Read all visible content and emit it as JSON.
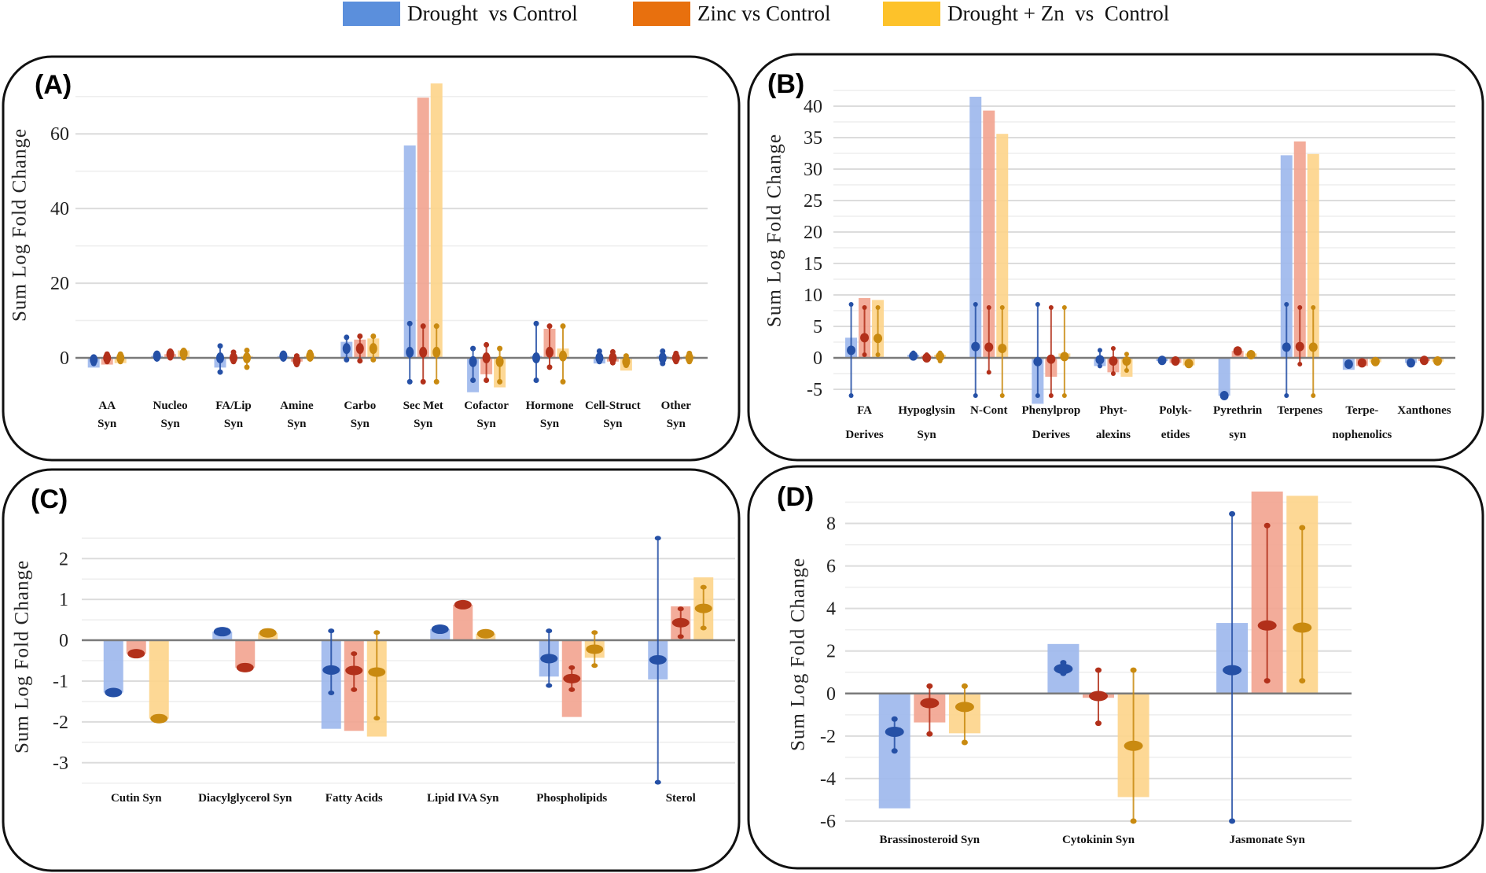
{
  "legend": [
    {
      "name": "Drought  vs Control",
      "color": "#5b8fdc"
    },
    {
      "name": "Zinc vs Control",
      "color": "#e8700e"
    },
    {
      "name": "Drought + Zn  vs  Control",
      "color": "#fdc22a"
    }
  ],
  "colors": {
    "bars": [
      "#9cb7ec",
      "#f2a38f",
      "#fdd48a"
    ],
    "points": [
      "#2550a6",
      "#b2301a",
      "#c98a10"
    ]
  },
  "chart_data": [
    {
      "panel": "(A)",
      "type": "bar",
      "ylabel": "Sum Log Fold Change",
      "ylim": [
        -10,
        75
      ],
      "yticks": [
        "0",
        "20",
        "40",
        "60"
      ],
      "grid": true,
      "legend_position": "top",
      "categories": [
        [
          "AA",
          "Syn"
        ],
        [
          "Nucleo",
          "Syn"
        ],
        [
          "FA/Lip",
          "Syn"
        ],
        [
          "Amine",
          "Syn"
        ],
        [
          "Carbo",
          "Syn"
        ],
        [
          "Sec Met",
          "Syn"
        ],
        [
          "Cofactor",
          "Syn"
        ],
        [
          "Hormone",
          "Syn"
        ],
        [
          "Cell-Struct",
          "Syn"
        ],
        [
          "Other",
          "Syn"
        ]
      ],
      "series": [
        {
          "name": "Drought  vs Control",
          "values": [
            -2.6,
            0.5,
            -2.6,
            0.5,
            4.3,
            56.9,
            -9.2,
            0.5,
            -1.5,
            0.5
          ],
          "means": [
            -0.5,
            0.5,
            0,
            0.5,
            2.5,
            1.5,
            -1,
            0,
            0,
            0
          ],
          "ranges": [
            [
              -1.5,
              0.2
            ],
            [
              -0.3,
              1.2
            ],
            [
              -3.8,
              3.2
            ],
            [
              -0.3,
              1.2
            ],
            [
              -0.5,
              5.5
            ],
            [
              -6.4,
              9.2
            ],
            [
              -6,
              2.5
            ],
            [
              -6,
              9.2
            ],
            [
              -1,
              1.8
            ],
            [
              -1.5,
              1.8
            ]
          ]
        },
        {
          "name": "Zinc vs Control",
          "values": [
            -1.8,
            1,
            0,
            -1,
            4.9,
            69.7,
            -4.4,
            7.8,
            -1,
            -0.5
          ],
          "means": [
            0,
            1,
            0,
            -0.8,
            2.5,
            1.5,
            0,
            1.5,
            0,
            0
          ],
          "ranges": [
            [
              -1,
              1
            ],
            [
              0,
              1.8
            ],
            [
              -1,
              1.5
            ],
            [
              -1.8,
              0.5
            ],
            [
              -0.8,
              5.8
            ],
            [
              -6.4,
              8.5
            ],
            [
              -6,
              3.5
            ],
            [
              -2.5,
              8.5
            ],
            [
              -1.3,
              1.6
            ],
            [
              -1,
              1.2
            ]
          ]
        },
        {
          "name": "Drought + Zn  vs  Control",
          "values": [
            -1.4,
            2,
            0.5,
            0.5,
            5.2,
            73.5,
            -7.9,
            2.5,
            -3.4,
            0.5
          ],
          "means": [
            0,
            1.2,
            0,
            0.5,
            2.5,
            1.5,
            -1,
            0.5,
            -1,
            0
          ],
          "ranges": [
            [
              -1,
              1
            ],
            [
              0,
              2
            ],
            [
              -2.5,
              2
            ],
            [
              -0.3,
              1.5
            ],
            [
              -0.5,
              5.8
            ],
            [
              -6.4,
              8.5
            ],
            [
              -6.4,
              2.5
            ],
            [
              -6.4,
              8.5
            ],
            [
              -2,
              0.5
            ],
            [
              -1,
              1.2
            ]
          ]
        }
      ]
    },
    {
      "panel": "(B)",
      "type": "bar",
      "ylabel": "Sum Log Fold Change",
      "ylim": [
        -7.5,
        42.5
      ],
      "yticks": [
        "-5",
        "0",
        "5",
        "10",
        "15",
        "20",
        "25",
        "30",
        "35",
        "40"
      ],
      "grid": true,
      "legend_position": "top",
      "categories": [
        [
          "FA",
          "Derives"
        ],
        [
          "Hypoglysin",
          "Syn"
        ],
        [
          "N-Cont",
          ""
        ],
        [
          "Phenylprop",
          "Derives"
        ],
        [
          "Phyt-",
          "alexins"
        ],
        [
          "Polyk-",
          "etides"
        ],
        [
          "Pyrethrin",
          "syn"
        ],
        [
          "Terpenes",
          ""
        ],
        [
          "Terpe-",
          "nophenolics"
        ],
        [
          "Xanthones",
          ""
        ]
      ],
      "series": [
        {
          "name": "Drought  vs Control",
          "values": [
            3.2,
            0.5,
            41.5,
            -7.3,
            -1.3,
            -0.5,
            -6,
            32.2,
            -1.9,
            -0.8
          ],
          "means": [
            1.2,
            0.3,
            1.8,
            -0.6,
            -0.3,
            -0.4,
            -6,
            1.7,
            -1,
            -0.8
          ],
          "ranges": [
            [
              -6,
              8.5
            ],
            [
              0,
              0.8
            ],
            [
              -6,
              8.5
            ],
            [
              -6,
              8.5
            ],
            [
              -1.3,
              1.2
            ],
            null,
            null,
            [
              -6,
              8.5
            ],
            null,
            null
          ]
        },
        {
          "name": "Zinc vs Control",
          "values": [
            9.5,
            0.3,
            39.3,
            -3,
            -2.3,
            -0.8,
            1.1,
            34.4,
            -1.3,
            -0.5
          ],
          "means": [
            3.2,
            0,
            1.7,
            -0.2,
            -0.5,
            -0.5,
            1.1,
            1.8,
            -0.8,
            -0.4
          ],
          "ranges": [
            [
              0.5,
              8
            ],
            [
              -0.3,
              0.5
            ],
            [
              -2.3,
              8
            ],
            [
              -6,
              8
            ],
            [
              -2.5,
              1.5
            ],
            null,
            null,
            [
              -1,
              8
            ],
            null,
            null
          ]
        },
        {
          "name": "Drought + Zn  vs  Control",
          "values": [
            9.2,
            0.5,
            35.6,
            0.7,
            -3,
            -1.2,
            0.7,
            32.4,
            -0.7,
            -0.6
          ],
          "means": [
            3.1,
            0.2,
            1.5,
            0.2,
            -0.5,
            -0.9,
            0.5,
            1.7,
            -0.6,
            -0.5
          ],
          "ranges": [
            [
              0.5,
              8
            ],
            [
              -0.5,
              0.8
            ],
            [
              -6,
              8
            ],
            [
              -6,
              8
            ],
            [
              -2,
              0.6
            ],
            null,
            null,
            [
              -6,
              8
            ],
            null,
            null
          ]
        }
      ]
    },
    {
      "panel": "(C)",
      "type": "bar",
      "ylabel": "Sum Log Fold Change",
      "ylim": [
        -3.5,
        2.5
      ],
      "yticks": [
        "-3",
        "-2",
        "-1",
        "0",
        "1",
        "2"
      ],
      "grid": true,
      "legend_position": "top",
      "categories": [
        [
          "Cutin Syn"
        ],
        [
          "Diacylglycerol Syn"
        ],
        [
          "Fatty Acids"
        ],
        [
          "Lipid IVA Syn"
        ],
        [
          "Phospholipids"
        ],
        [
          "Sterol"
        ]
      ],
      "series": [
        {
          "name": "Drought  vs Control",
          "values": [
            -1.28,
            0.21,
            -2.17,
            0.27,
            -0.89,
            -0.96
          ],
          "means": [
            -1.28,
            0.21,
            -0.73,
            0.27,
            -0.45,
            -0.48
          ],
          "ranges": [
            null,
            null,
            [
              -1.29,
              0.23
            ],
            null,
            [
              -1.11,
              0.23
            ],
            [
              -3.48,
              2.5
            ]
          ]
        },
        {
          "name": "Zinc vs Control",
          "values": [
            -0.33,
            -0.67,
            -2.22,
            0.87,
            -1.88,
            0.83
          ],
          "means": [
            -0.33,
            -0.67,
            -0.74,
            0.87,
            -0.94,
            0.43
          ],
          "ranges": [
            null,
            null,
            [
              -1.21,
              -0.33
            ],
            null,
            [
              -1.21,
              -0.67
            ],
            [
              0.09,
              0.77
            ]
          ]
        },
        {
          "name": "Drought + Zn  vs  Control",
          "values": [
            -1.92,
            0.18,
            -2.36,
            0.16,
            -0.43,
            1.54
          ],
          "means": [
            -1.92,
            0.18,
            -0.78,
            0.16,
            -0.22,
            0.78
          ],
          "ranges": [
            null,
            null,
            [
              -1.91,
              0.19
            ],
            null,
            [
              -0.62,
              0.19
            ],
            [
              0.3,
              1.3
            ]
          ]
        }
      ]
    },
    {
      "panel": "(D)",
      "type": "bar",
      "ylabel": "Sum Log Fold Change",
      "ylim": [
        -6,
        9.5
      ],
      "yticks": [
        "-6",
        "-4",
        "-2",
        "0",
        "2",
        "4",
        "6",
        "8"
      ],
      "grid": true,
      "legend_position": "top",
      "categories": [
        [
          "Brassinosteroid Syn"
        ],
        [
          "Cytokinin  Syn"
        ],
        [
          "Jasmonate Syn"
        ]
      ],
      "series": [
        {
          "name": "Drought  vs Control",
          "values": [
            -5.4,
            2.33,
            3.32
          ],
          "means": [
            -1.8,
            1.16,
            1.1
          ],
          "ranges": [
            [
              -2.7,
              -1.2
            ],
            [
              0.95,
              1.45
            ],
            [
              -6,
              8.45
            ]
          ]
        },
        {
          "name": "Zinc vs Control",
          "values": [
            -1.36,
            -0.2,
            9.5
          ],
          "means": [
            -0.45,
            -0.12,
            3.2
          ],
          "ranges": [
            [
              -1.9,
              0.35
            ],
            [
              -1.4,
              1.1
            ],
            [
              0.6,
              7.9
            ]
          ]
        },
        {
          "name": "Drought + Zn  vs  Control",
          "values": [
            -1.87,
            -4.87,
            9.3
          ],
          "means": [
            -0.63,
            -2.46,
            3.1
          ],
          "ranges": [
            [
              -2.3,
              0.35
            ],
            [
              -6,
              1.1
            ],
            [
              0.6,
              7.8
            ]
          ]
        }
      ]
    }
  ]
}
